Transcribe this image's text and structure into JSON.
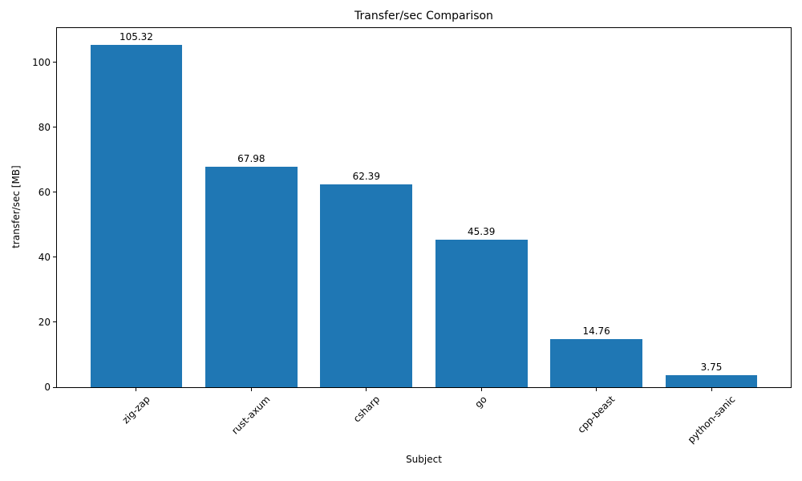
{
  "chart_data": {
    "type": "bar",
    "title": "Transfer/sec Comparison",
    "xlabel": "Subject",
    "ylabel": "transfer/sec [MB]",
    "categories": [
      "zig-zap",
      "rust-axum",
      "csharp",
      "go",
      "cpp-beast",
      "python-sanic"
    ],
    "values": [
      105.32,
      67.98,
      62.39,
      45.39,
      14.76,
      3.75
    ],
    "bar_labels": [
      "105.32",
      "67.98",
      "62.39",
      "45.39",
      "14.76",
      "3.75"
    ],
    "yticks": [
      0,
      20,
      40,
      60,
      80,
      100
    ],
    "ylim": [
      0,
      110.6
    ],
    "xlim": [
      -0.69,
      5.69
    ],
    "bar_width": 0.8,
    "xtick_rotation_deg": 45,
    "grid": false,
    "legend": false,
    "bar_color": "#1f77b4",
    "spine_color": "#000000",
    "text_color": "#000000",
    "background_color": "#ffffff"
  }
}
